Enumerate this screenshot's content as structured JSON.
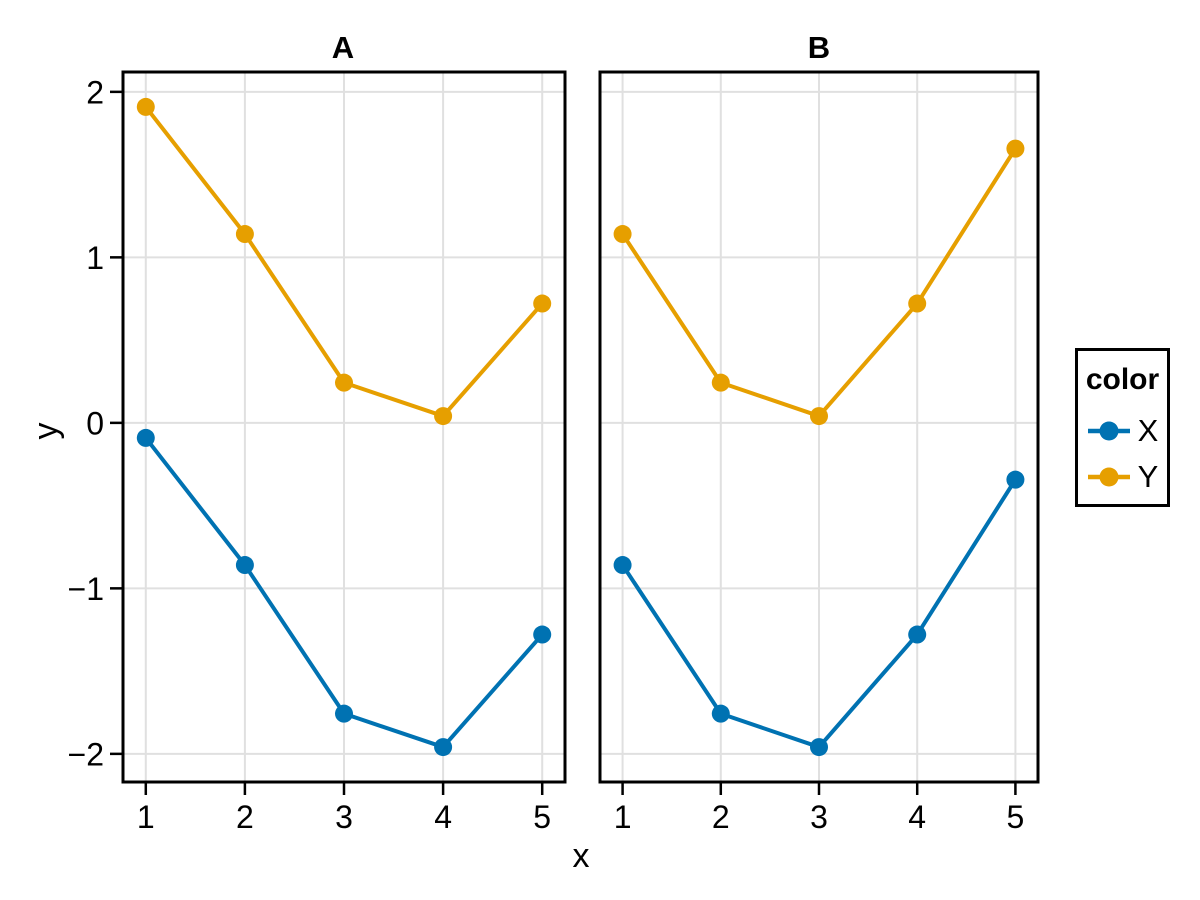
{
  "chart_data": {
    "type": "line",
    "xlabel": "x",
    "ylabel": "y",
    "x": [
      1,
      2,
      3,
      4,
      5
    ],
    "x_tick_labels": [
      "1",
      "2",
      "3",
      "4",
      "5"
    ],
    "y_ticks": [
      {
        "value": 2,
        "label": "2"
      },
      {
        "value": 1,
        "label": "1"
      },
      {
        "value": 0,
        "label": "0"
      },
      {
        "value": -1,
        "label": "−1"
      },
      {
        "value": -2,
        "label": "−2"
      }
    ],
    "xlim": [
      0.77,
      5.23
    ],
    "ylim": [
      -2.17,
      2.12
    ],
    "grid": true,
    "facets": [
      {
        "title": "A",
        "series": [
          {
            "name": "X",
            "color": "#0072B2",
            "values": [
              -0.091,
              -0.859,
              -1.757,
              -1.959,
              -1.279
            ]
          },
          {
            "name": "Y",
            "color": "#E69F00",
            "values": [
              1.909,
              1.141,
              0.243,
              0.041,
              0.721
            ]
          }
        ]
      },
      {
        "title": "B",
        "series": [
          {
            "name": "X",
            "color": "#0072B2",
            "values": [
              -0.859,
              -1.757,
              -1.959,
              -1.279,
              -0.343
            ]
          },
          {
            "name": "Y",
            "color": "#E69F00",
            "values": [
              1.141,
              0.243,
              0.041,
              0.721,
              1.657
            ]
          }
        ]
      }
    ],
    "legend": {
      "title": "color",
      "position": "right",
      "entries": [
        {
          "label": "X",
          "color": "#0072B2"
        },
        {
          "label": "Y",
          "color": "#E69F00"
        }
      ]
    },
    "colors": {
      "grid": "#E0E0E0",
      "spine": "#000000",
      "background": "#FFFFFF"
    }
  }
}
